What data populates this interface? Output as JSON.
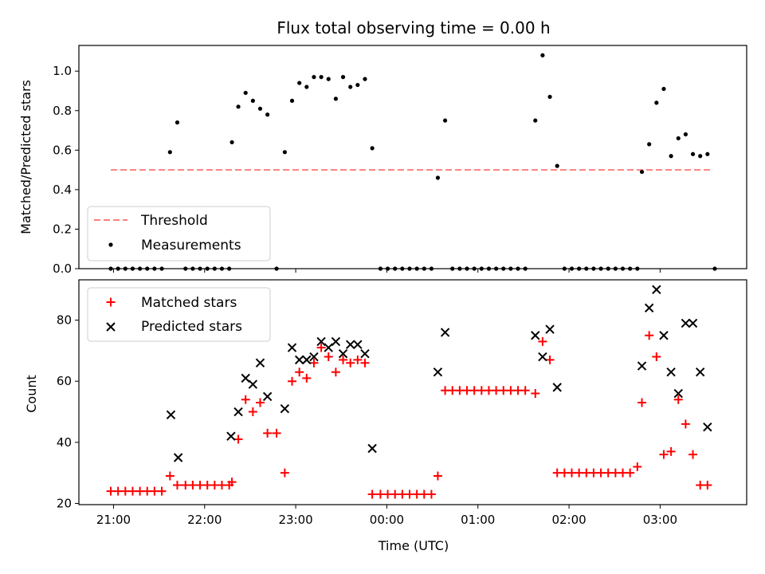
{
  "chart_data": [
    {
      "type": "scatter",
      "title": "Flux total observing time = 0.00 h",
      "ylabel": "Matched/Predicted stars",
      "xlabel": "",
      "x_unit": "hours since 21:00 UTC",
      "xlim": [
        -0.38,
        6.95
      ],
      "ylim": [
        0,
        1.13
      ],
      "yticks": [
        0.0,
        0.2,
        0.4,
        0.6,
        0.8,
        1.0
      ],
      "ytick_labels": [
        "0.0",
        "0.2",
        "0.4",
        "0.6",
        "0.8",
        "1.0"
      ],
      "legend": {
        "position": "lower-left",
        "entries": [
          "Threshold",
          "Measurements"
        ]
      },
      "threshold": {
        "name": "Threshold",
        "value": 0.5,
        "x_range": [
          -0.03,
          6.58
        ],
        "color": "#ff7f7f"
      },
      "series": [
        {
          "name": "Measurements",
          "color": "#000000",
          "marker": "dot",
          "points": [
            [
              -0.03,
              0
            ],
            [
              0.05,
              0
            ],
            [
              0.13,
              0
            ],
            [
              0.21,
              0
            ],
            [
              0.29,
              0
            ],
            [
              0.37,
              0
            ],
            [
              0.45,
              0
            ],
            [
              0.53,
              0
            ],
            [
              0.62,
              0.59
            ],
            [
              0.7,
              0.74
            ],
            [
              0.79,
              0
            ],
            [
              0.87,
              0
            ],
            [
              0.95,
              0
            ],
            [
              1.03,
              0
            ],
            [
              1.11,
              0
            ],
            [
              1.19,
              0
            ],
            [
              1.27,
              0
            ],
            [
              1.3,
              0.64
            ],
            [
              1.37,
              0.82
            ],
            [
              1.45,
              0.89
            ],
            [
              1.53,
              0.85
            ],
            [
              1.61,
              0.81
            ],
            [
              1.69,
              0.78
            ],
            [
              1.79,
              0
            ],
            [
              1.88,
              0.59
            ],
            [
              1.96,
              0.85
            ],
            [
              2.04,
              0.94
            ],
            [
              2.12,
              0.92
            ],
            [
              2.2,
              0.97
            ],
            [
              2.28,
              0.97
            ],
            [
              2.36,
              0.96
            ],
            [
              2.44,
              0.86
            ],
            [
              2.52,
              0.97
            ],
            [
              2.6,
              0.92
            ],
            [
              2.68,
              0.93
            ],
            [
              2.76,
              0.96
            ],
            [
              2.84,
              0.61
            ],
            [
              2.93,
              0
            ],
            [
              3.01,
              0
            ],
            [
              3.09,
              0
            ],
            [
              3.17,
              0
            ],
            [
              3.25,
              0
            ],
            [
              3.33,
              0
            ],
            [
              3.41,
              0
            ],
            [
              3.49,
              0
            ],
            [
              3.56,
              0.46
            ],
            [
              3.64,
              0.75
            ],
            [
              3.72,
              0
            ],
            [
              3.8,
              0
            ],
            [
              3.88,
              0
            ],
            [
              3.96,
              0
            ],
            [
              4.04,
              0
            ],
            [
              4.12,
              0
            ],
            [
              4.2,
              0
            ],
            [
              4.28,
              0
            ],
            [
              4.36,
              0
            ],
            [
              4.44,
              0
            ],
            [
              4.52,
              0
            ],
            [
              4.63,
              0.75
            ],
            [
              4.71,
              1.08
            ],
            [
              4.79,
              0.87
            ],
            [
              4.87,
              0.52
            ],
            [
              4.95,
              0
            ],
            [
              5.03,
              0
            ],
            [
              5.11,
              0
            ],
            [
              5.19,
              0
            ],
            [
              5.27,
              0
            ],
            [
              5.35,
              0
            ],
            [
              5.43,
              0
            ],
            [
              5.51,
              0
            ],
            [
              5.59,
              0
            ],
            [
              5.67,
              0
            ],
            [
              5.75,
              0
            ],
            [
              5.8,
              0.49
            ],
            [
              5.88,
              0.63
            ],
            [
              5.96,
              0.84
            ],
            [
              6.04,
              0.91
            ],
            [
              6.12,
              0.57
            ],
            [
              6.2,
              0.66
            ],
            [
              6.28,
              0.68
            ],
            [
              6.36,
              0.58
            ],
            [
              6.44,
              0.57
            ],
            [
              6.52,
              0.58
            ],
            [
              6.6,
              0
            ]
          ]
        }
      ]
    },
    {
      "type": "scatter",
      "title": "",
      "ylabel": "Count",
      "xlabel": "Time (UTC)",
      "x_unit": "hours since 21:00 UTC",
      "xlim": [
        -0.38,
        6.95
      ],
      "ylim": [
        19.6,
        93.2
      ],
      "xticks": [
        0,
        1,
        2,
        3,
        4,
        5,
        6
      ],
      "xtick_labels": [
        "21:00",
        "22:00",
        "23:00",
        "00:00",
        "01:00",
        "02:00",
        "03:00"
      ],
      "yticks": [
        20,
        40,
        60,
        80
      ],
      "ytick_labels": [
        "20",
        "40",
        "60",
        "80"
      ],
      "legend": {
        "position": "upper-left",
        "entries": [
          "Matched stars",
          "Predicted stars"
        ]
      },
      "series": [
        {
          "name": "Matched stars",
          "color": "#ff0000",
          "marker": "plus",
          "points": [
            [
              -0.03,
              24
            ],
            [
              0.05,
              24
            ],
            [
              0.13,
              24
            ],
            [
              0.21,
              24
            ],
            [
              0.29,
              24
            ],
            [
              0.37,
              24
            ],
            [
              0.45,
              24
            ],
            [
              0.53,
              24
            ],
            [
              0.62,
              29
            ],
            [
              0.7,
              26
            ],
            [
              0.79,
              26
            ],
            [
              0.87,
              26
            ],
            [
              0.95,
              26
            ],
            [
              1.03,
              26
            ],
            [
              1.11,
              26
            ],
            [
              1.19,
              26
            ],
            [
              1.27,
              26
            ],
            [
              1.3,
              27
            ],
            [
              1.37,
              41
            ],
            [
              1.45,
              54
            ],
            [
              1.53,
              50
            ],
            [
              1.61,
              53
            ],
            [
              1.69,
              43
            ],
            [
              1.79,
              43
            ],
            [
              1.88,
              30
            ],
            [
              1.96,
              60
            ],
            [
              2.04,
              63
            ],
            [
              2.12,
              61
            ],
            [
              2.2,
              66
            ],
            [
              2.28,
              71
            ],
            [
              2.36,
              68
            ],
            [
              2.44,
              63
            ],
            [
              2.52,
              67
            ],
            [
              2.6,
              66
            ],
            [
              2.68,
              67
            ],
            [
              2.76,
              66
            ],
            [
              2.84,
              23
            ],
            [
              2.93,
              23
            ],
            [
              3.01,
              23
            ],
            [
              3.09,
              23
            ],
            [
              3.17,
              23
            ],
            [
              3.25,
              23
            ],
            [
              3.33,
              23
            ],
            [
              3.41,
              23
            ],
            [
              3.49,
              23
            ],
            [
              3.56,
              29
            ],
            [
              3.64,
              57
            ],
            [
              3.72,
              57
            ],
            [
              3.8,
              57
            ],
            [
              3.88,
              57
            ],
            [
              3.96,
              57
            ],
            [
              4.04,
              57
            ],
            [
              4.12,
              57
            ],
            [
              4.2,
              57
            ],
            [
              4.28,
              57
            ],
            [
              4.36,
              57
            ],
            [
              4.44,
              57
            ],
            [
              4.52,
              57
            ],
            [
              4.63,
              56
            ],
            [
              4.71,
              73
            ],
            [
              4.79,
              67
            ],
            [
              4.87,
              30
            ],
            [
              4.95,
              30
            ],
            [
              5.03,
              30
            ],
            [
              5.11,
              30
            ],
            [
              5.19,
              30
            ],
            [
              5.27,
              30
            ],
            [
              5.35,
              30
            ],
            [
              5.43,
              30
            ],
            [
              5.51,
              30
            ],
            [
              5.59,
              30
            ],
            [
              5.67,
              30
            ],
            [
              5.75,
              32
            ],
            [
              5.8,
              53
            ],
            [
              5.88,
              75
            ],
            [
              5.96,
              68
            ],
            [
              6.04,
              36
            ],
            [
              6.12,
              37
            ],
            [
              6.2,
              54
            ],
            [
              6.28,
              46
            ],
            [
              6.36,
              36
            ],
            [
              6.44,
              26
            ],
            [
              6.52,
              26
            ]
          ]
        },
        {
          "name": "Predicted stars",
          "color": "#000000",
          "marker": "x",
          "points": [
            [
              0.63,
              49
            ],
            [
              0.71,
              35
            ],
            [
              1.29,
              42
            ],
            [
              1.37,
              50
            ],
            [
              1.45,
              61
            ],
            [
              1.53,
              59
            ],
            [
              1.61,
              66
            ],
            [
              1.69,
              55
            ],
            [
              1.88,
              51
            ],
            [
              1.96,
              71
            ],
            [
              2.04,
              67
            ],
            [
              2.12,
              67
            ],
            [
              2.2,
              68
            ],
            [
              2.28,
              73
            ],
            [
              2.36,
              71
            ],
            [
              2.44,
              73
            ],
            [
              2.52,
              69
            ],
            [
              2.6,
              72
            ],
            [
              2.68,
              72
            ],
            [
              2.76,
              69
            ],
            [
              2.84,
              38
            ],
            [
              3.56,
              63
            ],
            [
              3.64,
              76
            ],
            [
              4.63,
              75
            ],
            [
              4.71,
              68
            ],
            [
              4.79,
              77
            ],
            [
              4.87,
              58
            ],
            [
              5.8,
              65
            ],
            [
              5.88,
              84
            ],
            [
              5.96,
              90
            ],
            [
              6.04,
              75
            ],
            [
              6.12,
              63
            ],
            [
              6.2,
              56
            ],
            [
              6.28,
              79
            ],
            [
              6.36,
              79
            ],
            [
              6.44,
              63
            ],
            [
              6.52,
              45
            ]
          ]
        }
      ]
    }
  ]
}
